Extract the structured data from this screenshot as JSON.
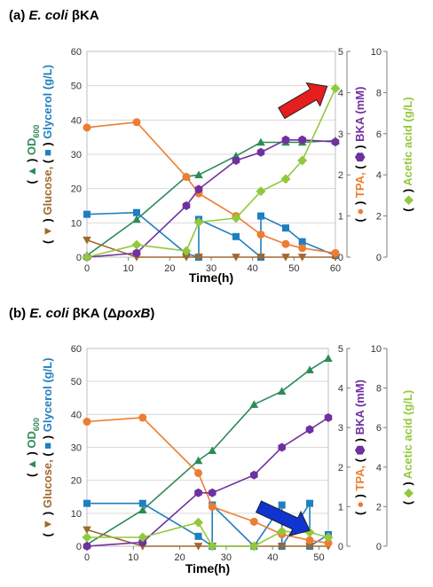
{
  "chart_data": [
    {
      "type": "line",
      "panel_tag": "(a)",
      "title_italic": "E. coli",
      "title_rest": " βKA",
      "title_italic_2": "",
      "title_end": "",
      "xlabel": "Time(h)",
      "x_ticks": [
        0,
        10,
        20,
        30,
        40,
        50,
        60
      ],
      "xlim": [
        0,
        60
      ],
      "axes": {
        "left": {
          "lim": [
            0,
            60
          ],
          "ticks": [
            0,
            10,
            20,
            30,
            40,
            50,
            60
          ]
        },
        "right1": {
          "lim": [
            0,
            5
          ],
          "ticks": [
            0,
            1,
            2,
            3,
            4,
            5
          ]
        },
        "right2": {
          "lim": [
            0,
            10
          ],
          "ticks": [
            0,
            2,
            4,
            6,
            8,
            10
          ]
        }
      },
      "ylabel_left": {
        "open": "( ",
        "close": " ) ",
        "od_text": "OD",
        "od_sub": "600",
        "glycerol_text": " Glycerol (g/L)",
        "glucose_text": "Glucose, "
      },
      "ylabel_right1": {
        "open": "( ",
        "close": " ) ",
        "tpa_text": "TPA, ",
        "bka_text": "BKA (mM)"
      },
      "ylabel_right2": {
        "open": "( ",
        "close": " ) ",
        "text": "Acetic acid (g/L)"
      },
      "series": [
        {
          "key": "od",
          "axis": "left",
          "marker": "triangle-up",
          "color": "#2e8b57",
          "x": [
            0,
            12,
            24,
            27,
            36,
            42,
            48,
            52,
            60
          ],
          "y": [
            0.5,
            11,
            23.5,
            24,
            29.5,
            33.5,
            33.5,
            33.5,
            34
          ]
        },
        {
          "key": "glycerol",
          "axis": "left",
          "marker": "square",
          "color": "#1f7fc0",
          "x": [
            0,
            12,
            24,
            27,
            27,
            36,
            42,
            42,
            48,
            52,
            60
          ],
          "y": [
            12.5,
            13,
            1,
            0,
            11,
            6,
            0,
            12,
            8.5,
            4.5,
            0.5
          ]
        },
        {
          "key": "glucose",
          "axis": "left",
          "marker": "triangle-down",
          "color": "#a0682e",
          "x": [
            0,
            12,
            24,
            27,
            36,
            42,
            48,
            52,
            60
          ],
          "y": [
            5,
            0,
            0,
            0,
            0,
            0,
            0,
            0,
            0
          ]
        },
        {
          "key": "tpa",
          "axis": "right1",
          "marker": "circle",
          "color": "#ed7d31",
          "x": [
            0,
            12,
            24,
            27,
            36,
            42,
            48,
            52,
            60
          ],
          "y": [
            3.15,
            3.28,
            1.95,
            1.55,
            1.0,
            0.55,
            0.32,
            0.22,
            0.1
          ]
        },
        {
          "key": "bka",
          "axis": "right1",
          "marker": "hexagon",
          "color": "#7030a0",
          "x": [
            0,
            12,
            24,
            27,
            36,
            42,
            48,
            52,
            60
          ],
          "y": [
            0,
            0.1,
            1.25,
            1.65,
            2.35,
            2.55,
            2.85,
            2.85,
            2.8
          ]
        },
        {
          "key": "acetic",
          "axis": "right2",
          "marker": "diamond",
          "color": "#92c83e",
          "x": [
            0,
            12,
            24,
            27,
            36,
            42,
            48,
            52,
            60
          ],
          "y": [
            0,
            0.6,
            0.3,
            1.7,
            1.9,
            3.2,
            3.8,
            4.7,
            8.2
          ]
        }
      ],
      "arrow": {
        "color": "#e61e1e",
        "tail": [
          47,
          7.0
        ],
        "head": [
          58,
          8.3
        ],
        "axis": "right2"
      }
    },
    {
      "type": "line",
      "panel_tag": "(b)",
      "title_italic": "E. coli",
      "title_rest": " βKA (Δ",
      "title_italic_2": "poxB",
      "title_end": ")",
      "xlabel": "Time(h)",
      "x_ticks": [
        0,
        10,
        20,
        30,
        40,
        50
      ],
      "xlim": [
        0,
        52
      ],
      "axes": {
        "left": {
          "lim": [
            0,
            60
          ],
          "ticks": [
            0,
            10,
            20,
            30,
            40,
            50,
            60
          ]
        },
        "right1": {
          "lim": [
            0,
            5
          ],
          "ticks": [
            0,
            1,
            2,
            3,
            4,
            5
          ]
        },
        "right2": {
          "lim": [
            0,
            10
          ],
          "ticks": [
            0,
            2,
            4,
            6,
            8,
            10
          ]
        }
      },
      "ylabel_left": {
        "open": "( ",
        "close": " ) ",
        "od_text": "OD",
        "od_sub": "600",
        "glycerol_text": " Glycerol (g/L)",
        "glucose_text": "Glucose, "
      },
      "ylabel_right1": {
        "open": "( ",
        "close": " ) ",
        "tpa_text": "TPA, ",
        "bka_text": "BKA (mM)"
      },
      "ylabel_right2": {
        "open": "( ",
        "close": " ) ",
        "text": "Acetic acid (g/L)"
      },
      "series": [
        {
          "key": "od",
          "axis": "left",
          "marker": "triangle-up",
          "color": "#2e8b57",
          "x": [
            0,
            12,
            24,
            27,
            36,
            42,
            48,
            52
          ],
          "y": [
            0.5,
            11,
            26,
            29,
            43,
            47,
            53.5,
            57
          ]
        },
        {
          "key": "glycerol",
          "axis": "left",
          "marker": "square",
          "color": "#1f7fc0",
          "x": [
            0,
            12,
            24,
            27,
            27,
            36,
            42,
            42,
            48,
            48,
            52
          ],
          "y": [
            13,
            13,
            3,
            0,
            12.5,
            0,
            12.5,
            0,
            13,
            0,
            3.5
          ]
        },
        {
          "key": "glucose",
          "axis": "left",
          "marker": "triangle-down",
          "color": "#a0682e",
          "x": [
            0,
            12,
            24,
            27,
            36,
            42,
            48,
            52
          ],
          "y": [
            5,
            0,
            0,
            0,
            0,
            0,
            0,
            0
          ]
        },
        {
          "key": "tpa",
          "axis": "right1",
          "marker": "circle",
          "color": "#ed7d31",
          "x": [
            0,
            12,
            24,
            27,
            36,
            42,
            48,
            52
          ],
          "y": [
            3.15,
            3.25,
            1.85,
            1.0,
            0.62,
            0.3,
            0.15,
            0.08
          ]
        },
        {
          "key": "bka",
          "axis": "right1",
          "marker": "hexagon",
          "color": "#7030a0",
          "x": [
            0,
            12,
            24,
            27,
            36,
            42,
            48,
            52
          ],
          "y": [
            0,
            0.1,
            1.35,
            1.35,
            1.8,
            2.5,
            2.95,
            3.25
          ]
        },
        {
          "key": "acetic",
          "axis": "right2",
          "marker": "diamond",
          "color": "#92c83e",
          "x": [
            0,
            12,
            24,
            27,
            36,
            42,
            48,
            52
          ],
          "y": [
            0.45,
            0.45,
            1.2,
            0,
            0,
            0.75,
            0.7,
            0.45
          ]
        }
      ],
      "arrow": {
        "color": "#1034d0",
        "tail": [
          37,
          2.0
        ],
        "head": [
          48,
          0.8
        ],
        "axis": "right2"
      }
    }
  ]
}
